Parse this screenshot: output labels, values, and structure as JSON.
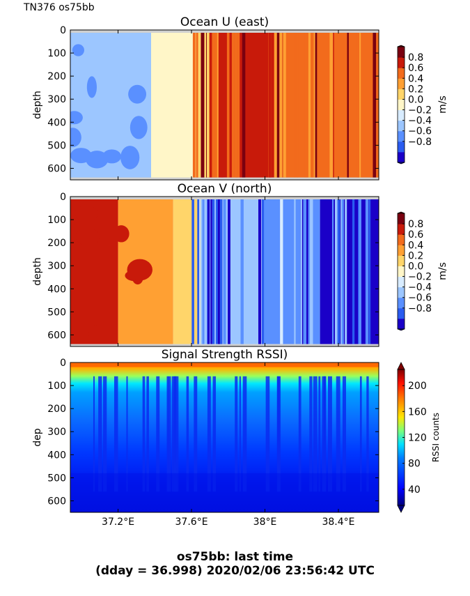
{
  "cruise_label": "TN376 os75bb",
  "footer": {
    "line1": "os75bb: last time",
    "line2": "(dday = 36.998) 2020/02/06 23:56:42 UTC"
  },
  "chart_data": [
    {
      "type": "heatmap",
      "title": "Ocean U (east)",
      "ylabel": "depth",
      "y_ticks": [
        0,
        100,
        200,
        300,
        400,
        500,
        600
      ],
      "ylim": [
        650,
        0
      ],
      "xlim": [
        36.94,
        38.62
      ],
      "x_ticks": [
        37.2,
        37.6,
        38.0,
        38.4
      ],
      "x_tick_labels": [],
      "colorbar": {
        "label": "m/s",
        "ticks": [
          "0.8",
          "0.6",
          "0.4",
          "0.2",
          "0.0",
          "−0.2",
          "−0.4",
          "−0.6",
          "−0.8"
        ],
        "range": [
          -0.8,
          0.8
        ],
        "colors": [
          "#1a00c8",
          "#2a5cf0",
          "#5a90ff",
          "#9cc6ff",
          "#d8ecff",
          "#fff6c8",
          "#ffd56a",
          "#ffa033",
          "#f26b1c",
          "#c81a0a",
          "#7a0010"
        ]
      },
      "regions": [
        {
          "x": [
            36.94,
            37.38
          ],
          "value": -0.3
        },
        {
          "x": [
            37.38,
            37.62
          ],
          "value": -0.05
        },
        {
          "x": [
            37.62,
            37.68
          ],
          "value": 0.1
        },
        {
          "x": [
            37.68,
            38.1
          ],
          "value": 0.55
        },
        {
          "x": [
            38.1,
            38.62
          ],
          "value": 0.4
        }
      ]
    },
    {
      "type": "heatmap",
      "title": "Ocean V (north)",
      "ylabel": "depth",
      "y_ticks": [
        0,
        100,
        200,
        300,
        400,
        500,
        600
      ],
      "ylim": [
        650,
        0
      ],
      "xlim": [
        36.94,
        38.62
      ],
      "x_ticks": [
        37.2,
        37.6,
        38.0,
        38.4
      ],
      "x_tick_labels": [],
      "colorbar": {
        "label": "m/s",
        "ticks": [
          "0.8",
          "0.6",
          "0.4",
          "0.2",
          "0.0",
          "−0.2",
          "−0.4",
          "−0.6",
          "−0.8"
        ],
        "range": [
          -0.8,
          0.8
        ],
        "colors": [
          "#1a00c8",
          "#2a5cf0",
          "#5a90ff",
          "#9cc6ff",
          "#d8ecff",
          "#fff6c8",
          "#ffd56a",
          "#ffa033",
          "#f26b1c",
          "#c81a0a",
          "#7a0010"
        ]
      },
      "regions": [
        {
          "x": [
            36.94,
            37.2
          ],
          "value": 0.55
        },
        {
          "x": [
            37.2,
            37.5
          ],
          "value": 0.35
        },
        {
          "x": [
            37.5,
            37.65
          ],
          "value": 0.1
        },
        {
          "x": [
            37.65,
            38.0
          ],
          "value": -0.3
        },
        {
          "x": [
            38.0,
            38.3
          ],
          "value": -0.5
        },
        {
          "x": [
            38.3,
            38.62
          ],
          "value": -0.7
        }
      ]
    },
    {
      "type": "heatmap",
      "title": "Signal Strength RSSI)",
      "ylabel": "dep",
      "y_ticks": [
        0,
        100,
        200,
        300,
        400,
        500,
        600
      ],
      "ylim": [
        650,
        0
      ],
      "xlim": [
        36.94,
        38.62
      ],
      "x_ticks": [
        37.2,
        37.6,
        38.0,
        38.4
      ],
      "x_tick_labels": [
        "37.2°E",
        "37.6°E",
        "38°E",
        "38.4°E"
      ],
      "colorbar": {
        "label": "RSSI counts",
        "ticks": [
          "200",
          "160",
          "120",
          "80",
          "40"
        ],
        "tick_values": [
          200,
          160,
          120,
          80,
          40
        ],
        "range": [
          15,
          225
        ],
        "colors": [
          "#00007f",
          "#0000ff",
          "#0080ff",
          "#00e0ff",
          "#7dff7a",
          "#ffe600",
          "#ff8000",
          "#ff1000",
          "#7f0000"
        ]
      },
      "depth_profile": [
        {
          "depth": 20,
          "value": 175
        },
        {
          "depth": 60,
          "value": 105
        },
        {
          "depth": 120,
          "value": 62
        },
        {
          "depth": 250,
          "value": 52
        },
        {
          "depth": 400,
          "value": 42
        },
        {
          "depth": 520,
          "value": 36
        },
        {
          "depth": 650,
          "value": 30
        }
      ]
    }
  ]
}
